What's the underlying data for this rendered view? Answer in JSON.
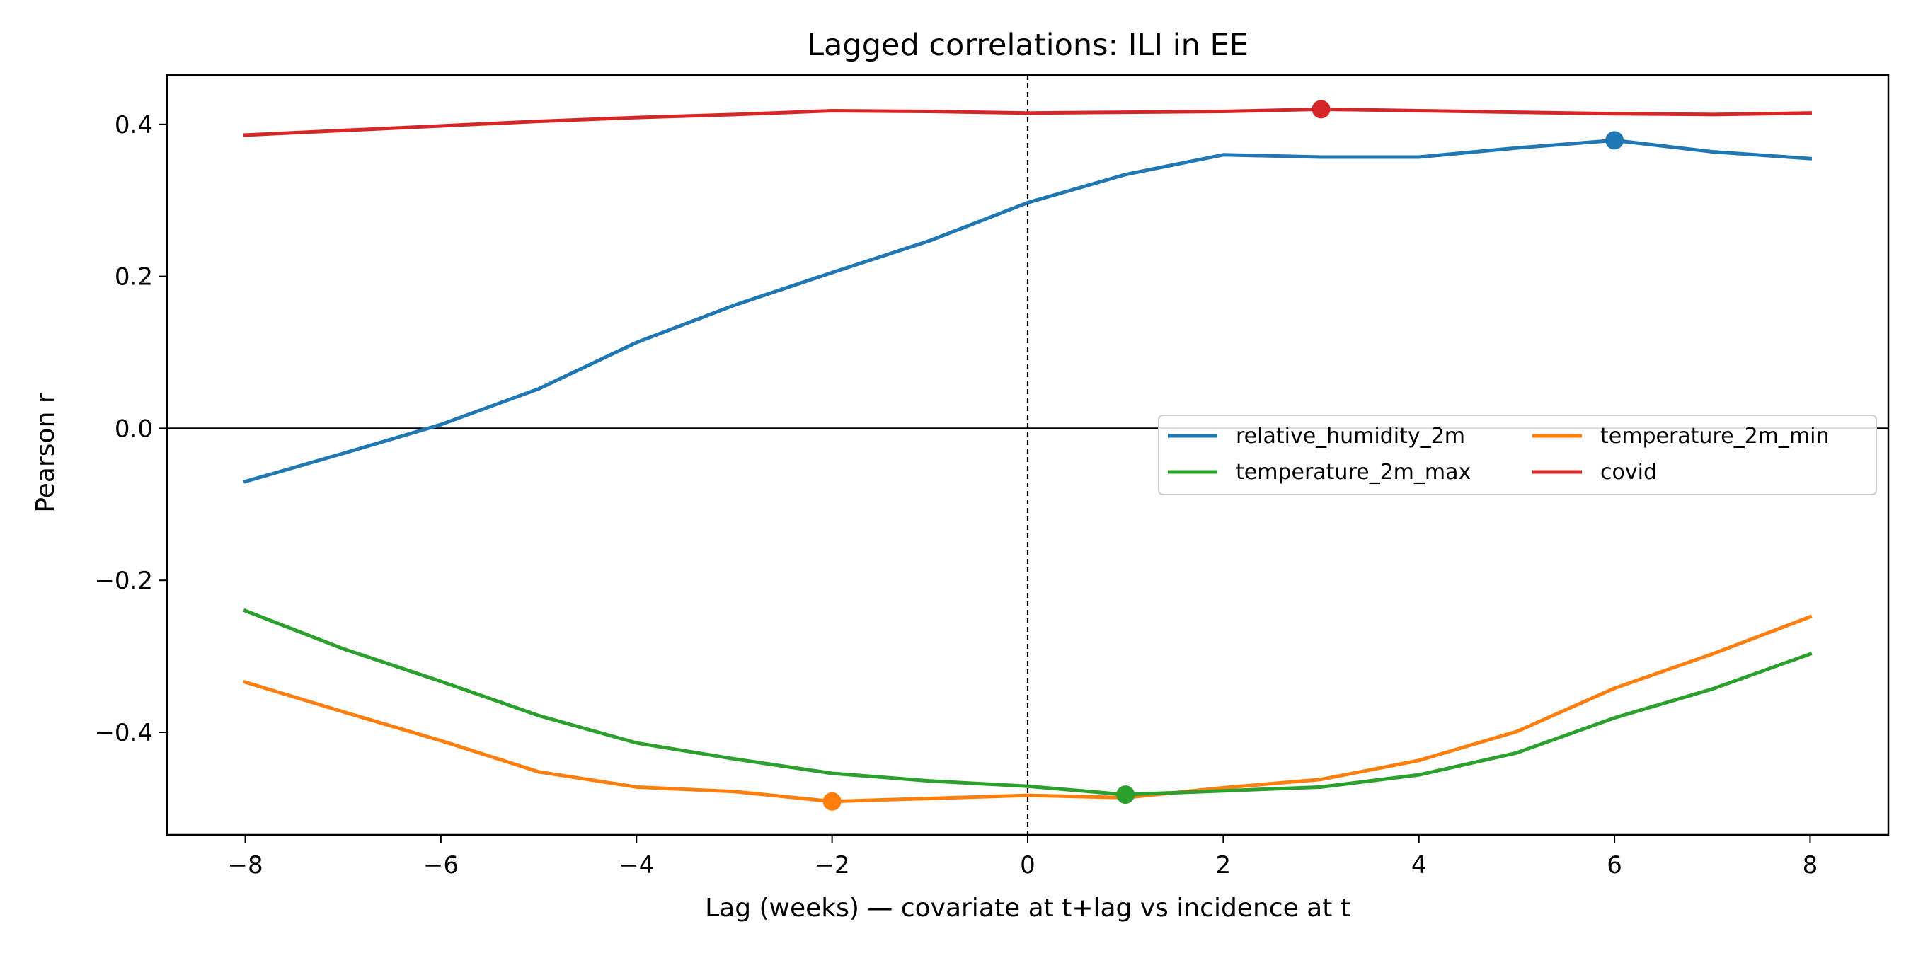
{
  "chart_data": {
    "type": "line",
    "title": "Lagged correlations: ILI in EE",
    "xlabel": "Lag (weeks) — covariate at t+lag vs incidence at t",
    "ylabel": "Pearson r",
    "xlim": [
      -8.8,
      8.8
    ],
    "ylim": [
      -0.535,
      0.465
    ],
    "xticks": [
      -8,
      -6,
      -4,
      -2,
      0,
      2,
      4,
      6,
      8
    ],
    "yticks": [
      -0.4,
      -0.2,
      0.0,
      0.2,
      0.4
    ],
    "x": [
      -8,
      -7,
      -6,
      -5,
      -4,
      -3,
      -2,
      -1,
      0,
      1,
      2,
      3,
      4,
      5,
      6,
      7,
      8
    ],
    "grid": false,
    "legend_position": "center-right",
    "reference_lines": [
      {
        "axis": "y",
        "value": 0.0,
        "style": "solid"
      },
      {
        "axis": "x",
        "value": 0,
        "style": "dashed"
      }
    ],
    "series": [
      {
        "name": "relative_humidity_2m",
        "color": "#1f77b4",
        "values": [
          -0.07,
          -0.033,
          0.005,
          0.052,
          0.113,
          0.162,
          0.205,
          0.247,
          0.297,
          0.334,
          0.36,
          0.357,
          0.357,
          0.369,
          0.379,
          0.364,
          0.355
        ],
        "peak_x": 6,
        "peak_y": 0.379
      },
      {
        "name": "temperature_2m_min",
        "color": "#ff7f0e",
        "values": [
          -0.334,
          -0.373,
          -0.411,
          -0.452,
          -0.472,
          -0.478,
          -0.491,
          -0.487,
          -0.483,
          -0.486,
          -0.473,
          -0.462,
          -0.437,
          -0.399,
          -0.342,
          -0.297,
          -0.248
        ],
        "peak_x": -2,
        "peak_y": -0.491
      },
      {
        "name": "temperature_2m_max",
        "color": "#2ca02c",
        "values": [
          -0.24,
          -0.29,
          -0.333,
          -0.378,
          -0.414,
          -0.435,
          -0.454,
          -0.464,
          -0.471,
          -0.482,
          -0.477,
          -0.472,
          -0.456,
          -0.427,
          -0.381,
          -0.343,
          -0.297
        ],
        "peak_x": 1,
        "peak_y": -0.482
      },
      {
        "name": "covid",
        "color": "#d62728",
        "values": [
          0.386,
          0.392,
          0.398,
          0.404,
          0.409,
          0.413,
          0.418,
          0.417,
          0.415,
          0.416,
          0.417,
          0.42,
          0.418,
          0.416,
          0.414,
          0.413,
          0.415
        ],
        "peak_x": 3,
        "peak_y": 0.42
      }
    ]
  }
}
